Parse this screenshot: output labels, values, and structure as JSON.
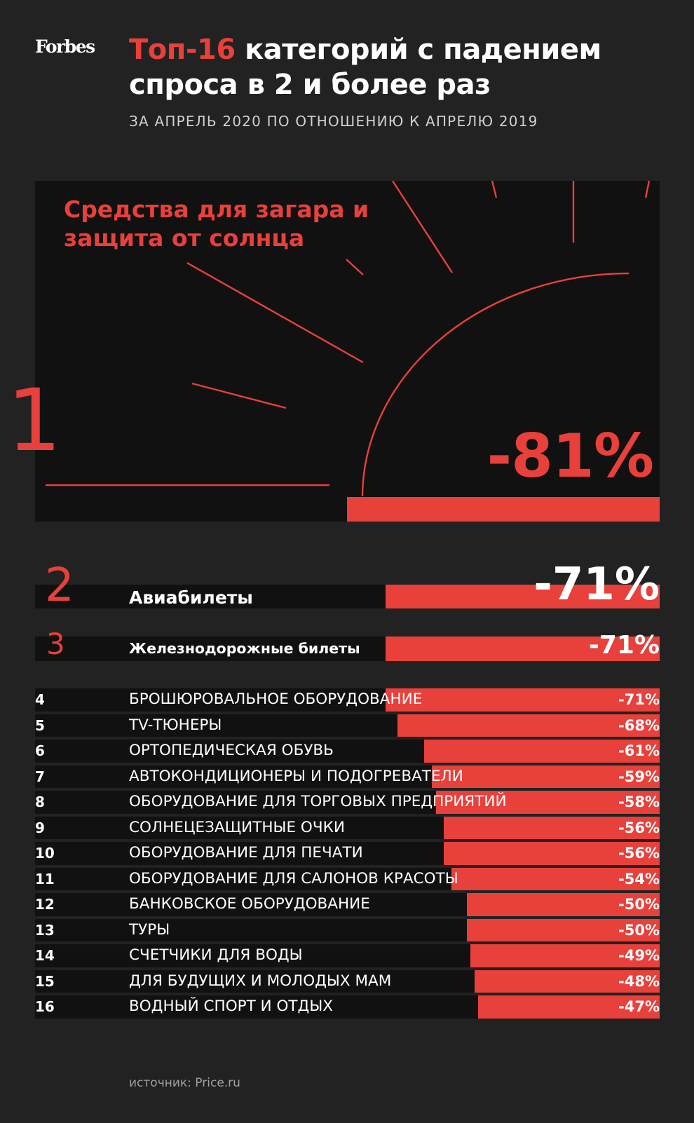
{
  "brand": "Forbes",
  "title": {
    "accent": "Топ-16",
    "rest": " категорий с падением спроса в 2 и более раз"
  },
  "subtitle": "ЗА АПРЕЛЬ 2020 ПО ОТНОШЕНИЮ К АПРЕЛЮ 2019",
  "source": "источник: Price.ru",
  "colors": {
    "accent": "#e8403b",
    "background": "#222222",
    "strip": "#111111",
    "text": "#ffffff"
  },
  "icons": [
    "sun-icon"
  ],
  "chart_data": {
    "type": "bar",
    "orientation": "horizontal",
    "unit": "%",
    "xlim": [
      -100,
      0
    ],
    "categories": [
      "Средства для загара и защита от солнца",
      "Авиабилеты",
      "Железнодорожные билеты",
      "БРОШЮРОВАЛЬНОЕ ОБОРУДОВАНИЕ",
      "TV-ТЮНЕРЫ",
      "ОРТОПЕДИЧЕСКАЯ ОБУВЬ",
      "АВТОКОНДИЦИОНЕРЫ И ПОДОГРЕВАТЕЛИ",
      "ОБОРУДОВАНИЕ ДЛЯ ТОРГОВЫХ ПРЕДПРИЯТИЙ",
      "СОЛНЕЦЕЗАЩИТНЫЕ ОЧКИ",
      "ОБОРУДОВАНИЕ ДЛЯ ПЕЧАТИ",
      "ОБОРУДОВАНИЕ ДЛЯ САЛОНОВ КРАСОТЫ",
      "БАНКОВСКОЕ ОБОРУДОВАНИЕ",
      "ТУРЫ",
      "СЧЕТЧИКИ ДЛЯ ВОДЫ",
      "ДЛЯ БУДУЩИХ И МОЛОДЫХ МАМ",
      "ВОДНЫЙ СПОРТ И ОТДЫХ"
    ],
    "ranks": [
      "1",
      "2",
      "3",
      "4",
      "5",
      "6",
      "7",
      "8",
      "9",
      "10",
      "11",
      "12",
      "13",
      "14",
      "15",
      "16"
    ],
    "values": [
      -81,
      -71,
      -71,
      -71,
      -68,
      -61,
      -59,
      -58,
      -56,
      -56,
      -54,
      -50,
      -50,
      -49,
      -48,
      -47
    ],
    "value_labels": [
      "-81%",
      "-71%",
      "-71%",
      "-71%",
      "-68%",
      "-61%",
      "-59%",
      "-58%",
      "-56%",
      "-56%",
      "-54%",
      "-50%",
      "-50%",
      "-49%",
      "-48%",
      "-47%"
    ]
  }
}
